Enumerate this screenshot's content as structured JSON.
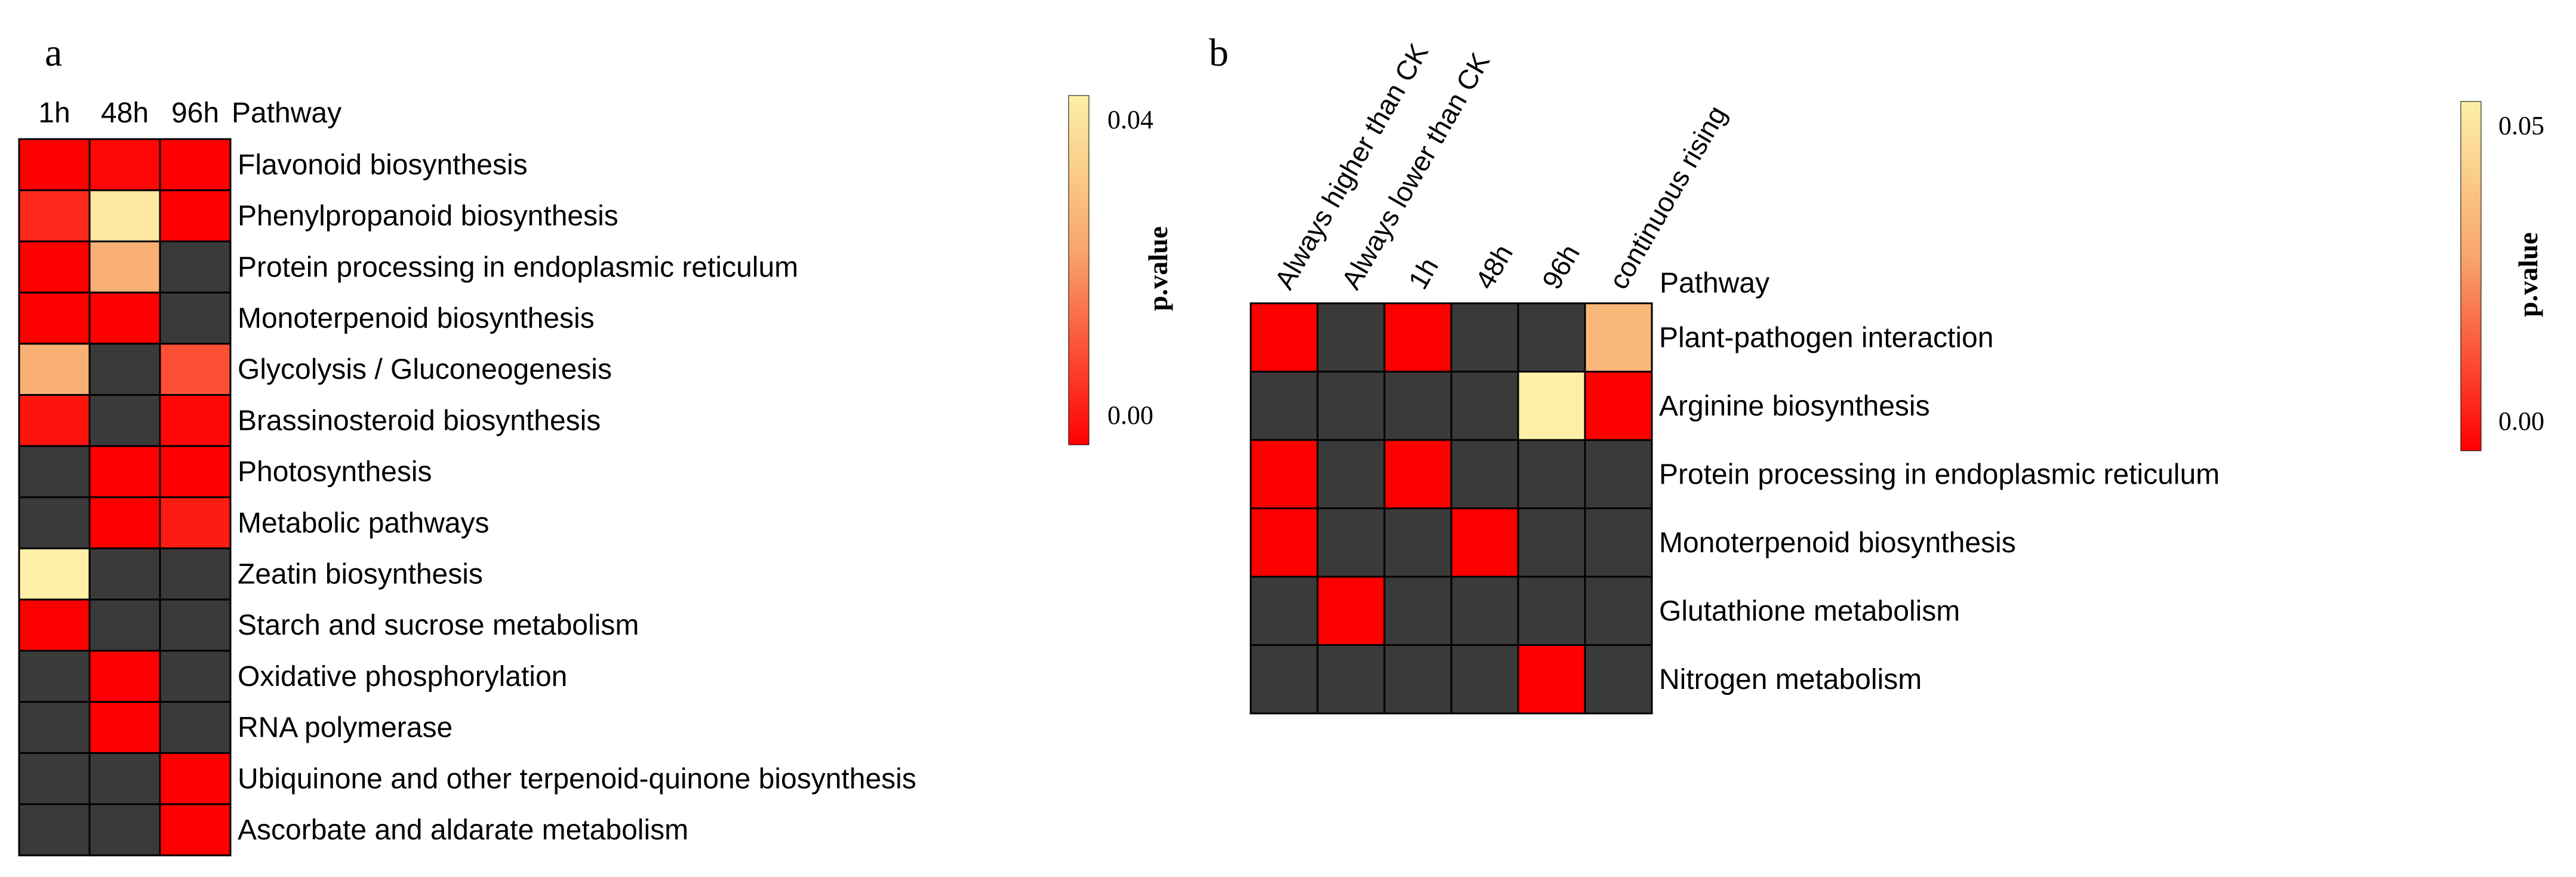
{
  "chart_data": [
    {
      "type": "heatmap",
      "panel_label": "a",
      "columns": [
        "1h",
        "48h",
        "96h"
      ],
      "row_header": "Pathway",
      "rows": [
        "Flavonoid biosynthesis",
        "Phenylpropanoid biosynthesis",
        "Protein processing in endoplasmic reticulum",
        "Monoterpenoid biosynthesis",
        "Glycolysis / Gluconeogenesis",
        "Brassinosteroid biosynthesis",
        "Photosynthesis",
        "Metabolic pathways",
        "Zeatin biosynthesis",
        "Starch and sucrose metabolism",
        "Oxidative phosphorylation",
        "RNA polymerase",
        "Ubiquinone and other terpenoid-quinone biosynthesis",
        "Ascorbate and aldarate metabolism"
      ],
      "values": [
        [
          0.0,
          0.001,
          0.0
        ],
        [
          0.006,
          0.043,
          0.0
        ],
        [
          0.0,
          0.028,
          null
        ],
        [
          0.0,
          0.0,
          null
        ],
        [
          0.028,
          null,
          0.012
        ],
        [
          0.003,
          null,
          0.001
        ],
        [
          null,
          0.0,
          0.0
        ],
        [
          null,
          0.0,
          0.004
        ],
        [
          0.045,
          null,
          null
        ],
        [
          0.0,
          null,
          null
        ],
        [
          null,
          0.0,
          null
        ],
        [
          null,
          0.0,
          null
        ],
        [
          null,
          null,
          0.0
        ],
        [
          null,
          null,
          0.0
        ]
      ],
      "missing_color": "#3a3a3a",
      "colorbar": {
        "label": "p.value",
        "ticks": [
          0.0,
          0.04
        ],
        "tick_labels": [
          "0.00",
          "0.04"
        ],
        "range": [
          0,
          0.045
        ]
      }
    },
    {
      "type": "heatmap",
      "panel_label": "b",
      "columns": [
        "Always higher than CK",
        "Always lower than CK",
        "1h",
        "48h",
        "96h",
        "continuous rising"
      ],
      "row_header": "Pathway",
      "rows": [
        "Plant-pathogen interaction",
        "Arginine biosynthesis",
        "Protein processing in endoplasmic reticulum",
        "Monoterpenoid biosynthesis",
        "Glutathione metabolism",
        "Nitrogen metabolism"
      ],
      "values": [
        [
          0.0,
          null,
          0.0,
          null,
          null,
          0.04
        ],
        [
          null,
          null,
          null,
          null,
          0.06,
          0.0
        ],
        [
          0.0,
          null,
          0.0,
          null,
          null,
          null
        ],
        [
          0.0,
          null,
          null,
          0.0,
          null,
          null
        ],
        [
          null,
          0.0,
          null,
          null,
          null,
          null
        ],
        [
          null,
          null,
          null,
          null,
          0.0,
          null
        ]
      ],
      "missing_color": "#3a3a3a",
      "colorbar": {
        "label": "p.value",
        "ticks": [
          0.0,
          0.05
        ],
        "tick_labels": [
          "0.00",
          "0.05"
        ],
        "range": [
          0,
          0.06
        ]
      }
    }
  ],
  "colors": {
    "low": "#ff0000",
    "mid": "#f7a46a",
    "high": "#fdf0a6",
    "missing": "#3a3a3a",
    "grid": "#000000"
  }
}
